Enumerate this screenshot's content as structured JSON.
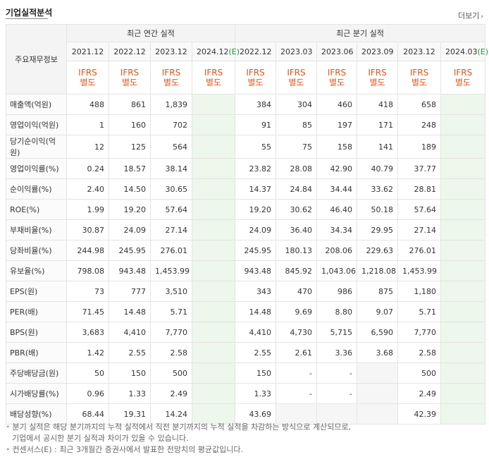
{
  "title": "기업실적분석",
  "more_label": "더보기",
  "header": {
    "row_label": "주요재무정보",
    "annual_group": "최근 연간 실적",
    "quarter_group": "최근 분기 실적",
    "annual_periods": [
      {
        "base": "2021.12",
        "est": ""
      },
      {
        "base": "2022.12",
        "est": ""
      },
      {
        "base": "2023.12",
        "est": ""
      },
      {
        "base": "2024.12",
        "est": "(E)"
      }
    ],
    "quarter_periods": [
      {
        "base": "2022.12",
        "est": ""
      },
      {
        "base": "2023.03",
        "est": ""
      },
      {
        "base": "2023.06",
        "est": ""
      },
      {
        "base": "2023.09",
        "est": ""
      },
      {
        "base": "2023.12",
        "est": ""
      },
      {
        "base": "2024.03",
        "est": "(E)"
      }
    ],
    "ifrs_line1": "IFRS",
    "ifrs_line2": "별도"
  },
  "rows": [
    {
      "label": "매출액(억원)",
      "values": [
        "488",
        "861",
        "1,839",
        "",
        "384",
        "304",
        "460",
        "418",
        "658",
        ""
      ]
    },
    {
      "label": "영업이익(억원)",
      "values": [
        "1",
        "160",
        "702",
        "",
        "91",
        "85",
        "197",
        "171",
        "248",
        ""
      ]
    },
    {
      "label": "당기순이익(억원)",
      "values": [
        "12",
        "125",
        "564",
        "",
        "55",
        "75",
        "158",
        "141",
        "189",
        ""
      ]
    },
    {
      "label": "영업이익률(%)",
      "values": [
        "0.24",
        "18.57",
        "38.14",
        "",
        "23.82",
        "28.08",
        "42.90",
        "40.79",
        "37.77",
        ""
      ]
    },
    {
      "label": "순이익률(%)",
      "values": [
        "2.40",
        "14.50",
        "30.65",
        "",
        "14.37",
        "24.84",
        "34.44",
        "33.62",
        "28.81",
        ""
      ]
    },
    {
      "label": "ROE(%)",
      "values": [
        "1.99",
        "19.20",
        "57.64",
        "",
        "19.20",
        "30.62",
        "46.40",
        "50.18",
        "57.64",
        ""
      ]
    },
    {
      "label": "부채비율(%)",
      "values": [
        "30.87",
        "24.09",
        "27.14",
        "",
        "24.09",
        "36.40",
        "34.34",
        "29.95",
        "27.14",
        ""
      ]
    },
    {
      "label": "당좌비율(%)",
      "values": [
        "244.98",
        "245.95",
        "276.01",
        "",
        "245.95",
        "180.13",
        "208.06",
        "229.63",
        "276.01",
        ""
      ]
    },
    {
      "label": "유보율(%)",
      "values": [
        "798.08",
        "943.48",
        "1,453.99",
        "",
        "943.48",
        "845.92",
        "1,043.06",
        "1,218.08",
        "1,453.99",
        ""
      ]
    },
    {
      "label": "EPS(원)",
      "values": [
        "73",
        "777",
        "3,510",
        "",
        "343",
        "470",
        "986",
        "875",
        "1,180",
        ""
      ]
    },
    {
      "label": "PER(배)",
      "values": [
        "71.45",
        "14.48",
        "5.71",
        "",
        "14.48",
        "9.69",
        "8.80",
        "9.07",
        "5.71",
        ""
      ]
    },
    {
      "label": "BPS(원)",
      "values": [
        "3,683",
        "4,410",
        "7,770",
        "",
        "4,410",
        "4,730",
        "5,715",
        "6,590",
        "7,770",
        ""
      ]
    },
    {
      "label": "PBR(배)",
      "values": [
        "1.42",
        "2.55",
        "2.58",
        "",
        "2.55",
        "2.61",
        "3.36",
        "3.68",
        "2.58",
        ""
      ]
    },
    {
      "label": "주당배당금(원)",
      "values": [
        "50",
        "150",
        "500",
        "",
        "150",
        "-",
        "-",
        "",
        "500",
        ""
      ]
    },
    {
      "label": "시가배당률(%)",
      "values": [
        "0.96",
        "1.33",
        "2.49",
        "",
        "1.33",
        "-",
        "-",
        "",
        "2.49",
        ""
      ]
    },
    {
      "label": "배당성향(%)",
      "values": [
        "68.44",
        "19.31",
        "14.24",
        "",
        "43.69",
        "",
        "",
        "",
        "42.39",
        ""
      ]
    }
  ],
  "notes": [
    "분기 실적은 해당 분기까지의 누적 실적에서 직전 분기까지의 누적 실적을 차감하는 방식으로 계산되므로,",
    "기업에서 공시한 분기 실적과 차이가 있을 수 있습니다.",
    "컨센서스(E) : 최근 3개월간 증권사에서 발표한 전망치의 평균값입니다."
  ]
}
